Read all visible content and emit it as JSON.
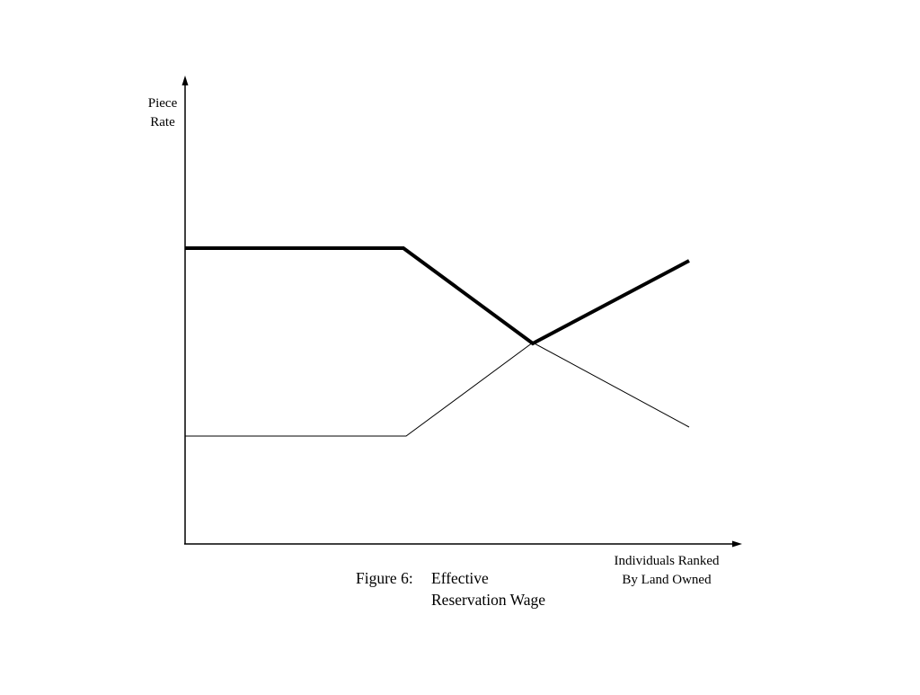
{
  "axes": {
    "y_label": [
      "Piece",
      "Rate"
    ],
    "x_label": [
      "Individuals Ranked",
      "By Land Owned"
    ]
  },
  "caption": {
    "label": "Figure 6:",
    "title": [
      "Effective",
      "Reservation Wage"
    ]
  }
}
